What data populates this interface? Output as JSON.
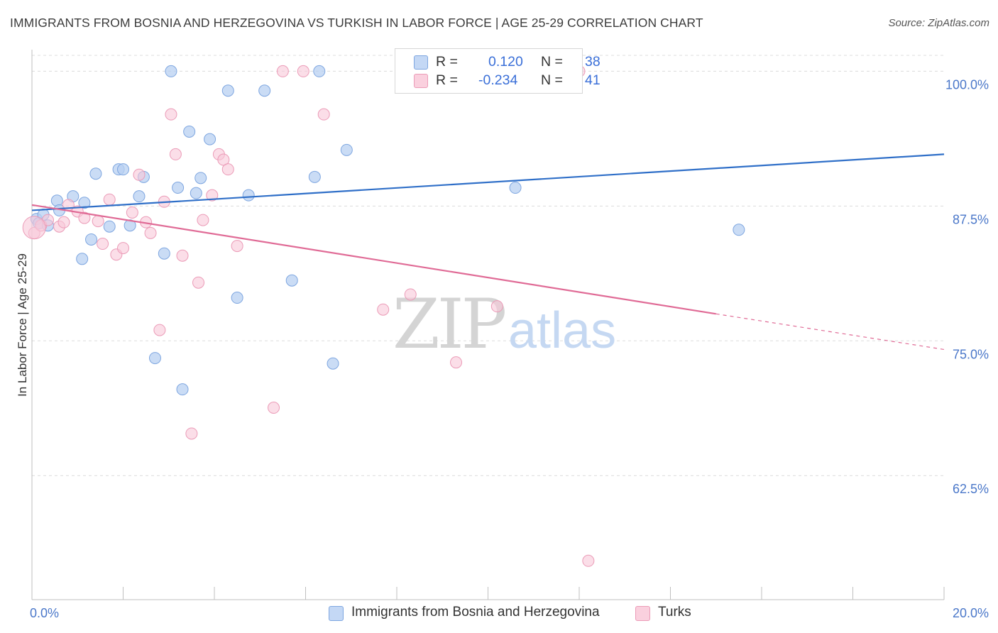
{
  "title": "IMMIGRANTS FROM BOSNIA AND HERZEGOVINA VS TURKISH IN LABOR FORCE | AGE 25-29 CORRELATION CHART",
  "source": "Source: ZipAtlas.com",
  "watermark": {
    "zip": "ZIP",
    "atlas": "atlas"
  },
  "legend": {
    "rows": [
      {
        "r_label": "R =",
        "r_value": "0.120",
        "n_label": "N =",
        "n_value": "38"
      },
      {
        "r_label": "R =",
        "r_value": "-0.234",
        "n_label": "N =",
        "n_value": "41"
      }
    ]
  },
  "colors": {
    "blue_fill": "#b8d0f2",
    "blue_stroke": "#7ea6e0",
    "blue_line": "#2f6fc8",
    "pink_fill": "#f8c8d8",
    "pink_stroke": "#eb9bb7",
    "pink_line": "#e06b96",
    "tick_text": "#4a77c9"
  },
  "chart_data": {
    "type": "scatter",
    "title": "IMMIGRANTS FROM BOSNIA AND HERZEGOVINA VS TURKISH IN LABOR FORCE | AGE 25-29 CORRELATION CHART",
    "xlabel": "",
    "ylabel": "In Labor Force | Age 25-29",
    "xlim": [
      0,
      20
    ],
    "ylim": [
      51,
      102
    ],
    "x_tick_labels": [
      "0.0%",
      "20.0%"
    ],
    "y_ticks": [
      62.5,
      75.0,
      87.5,
      100.0
    ],
    "y_tick_labels": [
      "62.5%",
      "75.0%",
      "87.5%",
      "100.0%"
    ],
    "grid": true,
    "legend_position": "top-center",
    "series": [
      {
        "name": "Immigrants from Bosnia and Herzegovina",
        "points": [
          [
            0.1,
            86.3
          ],
          [
            0.15,
            85.9
          ],
          [
            0.25,
            86.7
          ],
          [
            0.35,
            85.7
          ],
          [
            0.55,
            88.0
          ],
          [
            0.6,
            87.1
          ],
          [
            0.9,
            88.4
          ],
          [
            1.15,
            87.8
          ],
          [
            1.1,
            82.6
          ],
          [
            1.3,
            84.4
          ],
          [
            1.4,
            90.5
          ],
          [
            1.7,
            85.6
          ],
          [
            1.9,
            90.9
          ],
          [
            2.0,
            90.9
          ],
          [
            2.15,
            85.7
          ],
          [
            2.35,
            88.4
          ],
          [
            2.45,
            90.2
          ],
          [
            2.9,
            83.1
          ],
          [
            3.05,
            100.0
          ],
          [
            2.7,
            73.4
          ],
          [
            3.2,
            89.2
          ],
          [
            3.3,
            70.5
          ],
          [
            3.45,
            94.4
          ],
          [
            3.6,
            88.7
          ],
          [
            3.7,
            90.1
          ],
          [
            3.9,
            93.7
          ],
          [
            4.3,
            98.2
          ],
          [
            4.5,
            79.0
          ],
          [
            4.75,
            88.5
          ],
          [
            5.1,
            98.2
          ],
          [
            5.7,
            80.6
          ],
          [
            6.2,
            90.2
          ],
          [
            6.3,
            100.0
          ],
          [
            6.6,
            72.9
          ],
          [
            6.9,
            92.7
          ],
          [
            8.2,
            100.0
          ],
          [
            10.6,
            89.2
          ],
          [
            15.5,
            85.3
          ]
        ],
        "trend": {
          "x": [
            0,
            20
          ],
          "y": [
            87.1,
            92.3
          ]
        }
      },
      {
        "name": "Turks",
        "points": [
          [
            0.05,
            85.0
          ],
          [
            0.2,
            85.7
          ],
          [
            0.35,
            86.2
          ],
          [
            0.6,
            85.6
          ],
          [
            0.7,
            86.0
          ],
          [
            0.8,
            87.6
          ],
          [
            1.0,
            87.0
          ],
          [
            1.15,
            86.4
          ],
          [
            1.45,
            86.1
          ],
          [
            1.55,
            84.0
          ],
          [
            1.7,
            88.1
          ],
          [
            1.85,
            83.0
          ],
          [
            2.0,
            83.6
          ],
          [
            2.2,
            86.9
          ],
          [
            2.35,
            90.4
          ],
          [
            2.5,
            86.0
          ],
          [
            2.6,
            85.0
          ],
          [
            2.8,
            76.0
          ],
          [
            2.9,
            87.9
          ],
          [
            3.05,
            96.0
          ],
          [
            3.15,
            92.3
          ],
          [
            3.3,
            82.9
          ],
          [
            3.5,
            66.4
          ],
          [
            3.65,
            80.4
          ],
          [
            3.75,
            86.2
          ],
          [
            3.95,
            88.5
          ],
          [
            4.1,
            92.3
          ],
          [
            4.2,
            91.8
          ],
          [
            4.3,
            90.9
          ],
          [
            4.5,
            83.8
          ],
          [
            5.3,
            68.8
          ],
          [
            5.5,
            100.0
          ],
          [
            5.95,
            100.0
          ],
          [
            6.4,
            96.0
          ],
          [
            7.7,
            77.9
          ],
          [
            8.3,
            79.3
          ],
          [
            9.3,
            73.0
          ],
          [
            10.2,
            78.2
          ],
          [
            12.0,
            100.0
          ],
          [
            12.2,
            54.6
          ],
          [
            0.05,
            85.5
          ]
        ],
        "trend": {
          "x": [
            0,
            15
          ],
          "y": [
            87.6,
            77.5
          ]
        },
        "trend_dashed": {
          "x": [
            15,
            20
          ],
          "y": [
            77.5,
            74.2
          ]
        }
      }
    ]
  }
}
